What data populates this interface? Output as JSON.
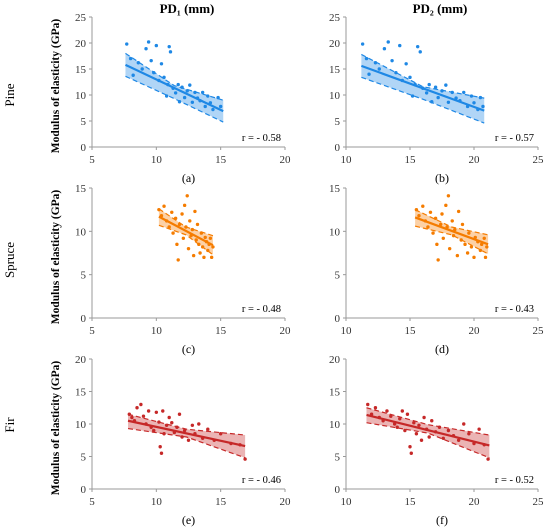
{
  "column_headers": [
    "PD₁ (mm)",
    "PD₂ (mm)"
  ],
  "row_labels": [
    "Pine",
    "Spruce",
    "Fir"
  ],
  "ylabel": "Modulus of elasticity (GPa)",
  "colors": {
    "pine": "#1e88e5",
    "spruce": "#f57c00",
    "fir": "#c62828"
  },
  "chart_data": [
    {
      "type": "scatter",
      "panel": "(a)",
      "species": "Pine",
      "color": "#1e88e5",
      "xlim": [
        5,
        20
      ],
      "ylim": [
        0,
        25
      ],
      "xticks": [
        5,
        10,
        15,
        20
      ],
      "yticks": [
        0,
        5,
        10,
        15,
        20,
        25
      ],
      "ylabel": "Modulus of elasticity (GPa)",
      "annotation": "r = - 0.58",
      "fit": {
        "x": [
          7.6,
          15.2
        ],
        "y": [
          15.8,
          6.9
        ]
      },
      "band": {
        "x": [
          7.6,
          11.4,
          15.2
        ],
        "upper": [
          18.0,
          11.8,
          9.0
        ],
        "lower": [
          13.6,
          9.3,
          4.8
        ]
      },
      "points": [
        [
          7.7,
          19.8
        ],
        [
          8.0,
          17.0
        ],
        [
          8.2,
          13.8
        ],
        [
          8.6,
          16.2
        ],
        [
          8.9,
          15.0
        ],
        [
          9.2,
          18.9
        ],
        [
          9.4,
          20.2
        ],
        [
          9.6,
          16.6
        ],
        [
          9.8,
          14.3
        ],
        [
          10.0,
          19.5
        ],
        [
          10.2,
          12.8
        ],
        [
          10.4,
          16.0
        ],
        [
          10.6,
          13.4
        ],
        [
          10.8,
          9.8
        ],
        [
          10.9,
          12.0
        ],
        [
          11.0,
          19.3
        ],
        [
          11.1,
          18.3
        ],
        [
          11.3,
          11.3
        ],
        [
          11.5,
          10.4
        ],
        [
          11.7,
          12.0
        ],
        [
          11.8,
          8.7
        ],
        [
          12.0,
          11.5
        ],
        [
          12.2,
          9.5
        ],
        [
          12.4,
          10.8
        ],
        [
          12.6,
          11.9
        ],
        [
          12.8,
          8.6
        ],
        [
          13.0,
          10.5
        ],
        [
          13.2,
          9.4
        ],
        [
          13.4,
          8.9
        ],
        [
          13.6,
          10.5
        ],
        [
          13.8,
          7.8
        ],
        [
          14.0,
          9.8
        ],
        [
          14.2,
          8.5
        ],
        [
          14.4,
          7.2
        ],
        [
          14.8,
          9.5
        ],
        [
          15.0,
          7.8
        ]
      ]
    },
    {
      "type": "scatter",
      "panel": "(b)",
      "species": "Pine",
      "color": "#1e88e5",
      "xlim": [
        10,
        25
      ],
      "ylim": [
        0,
        25
      ],
      "xticks": [
        10,
        15,
        20,
        25
      ],
      "yticks": [
        0,
        5,
        10,
        15,
        20,
        25
      ],
      "ylabel": "",
      "annotation": "r = - 0.57",
      "fit": {
        "x": [
          11.2,
          20.8
        ],
        "y": [
          15.6,
          7.0
        ]
      },
      "band": {
        "x": [
          11.2,
          16.0,
          20.8
        ],
        "upper": [
          17.8,
          11.6,
          9.4
        ],
        "lower": [
          13.4,
          9.2,
          4.6
        ]
      },
      "points": [
        [
          11.3,
          19.8
        ],
        [
          11.6,
          17.0
        ],
        [
          11.8,
          14.0
        ],
        [
          12.3,
          16.2
        ],
        [
          12.6,
          15.0
        ],
        [
          13.0,
          18.9
        ],
        [
          13.3,
          20.2
        ],
        [
          13.6,
          16.6
        ],
        [
          13.9,
          14.3
        ],
        [
          14.2,
          19.5
        ],
        [
          14.4,
          12.8
        ],
        [
          14.7,
          16.0
        ],
        [
          15.0,
          13.4
        ],
        [
          15.2,
          9.8
        ],
        [
          15.4,
          12.0
        ],
        [
          15.6,
          19.3
        ],
        [
          15.8,
          18.3
        ],
        [
          16.0,
          11.3
        ],
        [
          16.3,
          10.4
        ],
        [
          16.5,
          12.0
        ],
        [
          16.7,
          8.7
        ],
        [
          17.0,
          11.5
        ],
        [
          17.2,
          9.5
        ],
        [
          17.5,
          10.8
        ],
        [
          17.8,
          11.9
        ],
        [
          18.0,
          8.6
        ],
        [
          18.3,
          10.5
        ],
        [
          18.6,
          9.4
        ],
        [
          18.9,
          8.9
        ],
        [
          19.2,
          10.5
        ],
        [
          19.5,
          7.8
        ],
        [
          19.8,
          9.8
        ],
        [
          20.0,
          8.5
        ],
        [
          20.3,
          7.2
        ],
        [
          20.5,
          9.5
        ],
        [
          20.7,
          7.8
        ]
      ]
    },
    {
      "type": "scatter",
      "panel": "(c)",
      "species": "Spruce",
      "color": "#f57c00",
      "xlim": [
        5,
        20
      ],
      "ylim": [
        0,
        15
      ],
      "xticks": [
        5,
        10,
        15,
        20
      ],
      "yticks": [
        0,
        5,
        10,
        15
      ],
      "ylabel": "Modulus of elasticity (GPa)",
      "annotation": "r = - 0.48",
      "fit": {
        "x": [
          10.2,
          14.4
        ],
        "y": [
          11.7,
          8.4
        ]
      },
      "band": {
        "x": [
          10.2,
          12.3,
          14.4
        ],
        "upper": [
          12.6,
          10.5,
          9.5
        ],
        "lower": [
          10.7,
          9.6,
          7.3
        ]
      },
      "points": [
        [
          10.2,
          12.5
        ],
        [
          10.4,
          11.8
        ],
        [
          10.6,
          12.9
        ],
        [
          10.8,
          11.2
        ],
        [
          11.0,
          10.5
        ],
        [
          11.2,
          12.2
        ],
        [
          11.3,
          9.8
        ],
        [
          11.5,
          11.5
        ],
        [
          11.6,
          8.5
        ],
        [
          11.7,
          6.7
        ],
        [
          11.8,
          10.8
        ],
        [
          12.0,
          12.0
        ],
        [
          12.1,
          9.2
        ],
        [
          12.2,
          13.0
        ],
        [
          12.3,
          10.5
        ],
        [
          12.4,
          14.1
        ],
        [
          12.5,
          8.0
        ],
        [
          12.6,
          11.2
        ],
        [
          12.7,
          9.5
        ],
        [
          12.8,
          10.2
        ],
        [
          12.9,
          7.2
        ],
        [
          13.0,
          12.3
        ],
        [
          13.1,
          9.0
        ],
        [
          13.2,
          10.8
        ],
        [
          13.3,
          8.5
        ],
        [
          13.4,
          7.5
        ],
        [
          13.5,
          9.8
        ],
        [
          13.6,
          8.2
        ],
        [
          13.7,
          7.0
        ],
        [
          13.8,
          9.3
        ],
        [
          13.9,
          8.8
        ],
        [
          14.0,
          7.8
        ],
        [
          14.1,
          8.5
        ],
        [
          14.2,
          9.2
        ],
        [
          14.3,
          7.0
        ],
        [
          14.4,
          8.2
        ]
      ]
    },
    {
      "type": "scatter",
      "panel": "(d)",
      "species": "Spruce",
      "color": "#f57c00",
      "xlim": [
        10,
        25
      ],
      "ylim": [
        0,
        15
      ],
      "xticks": [
        10,
        15,
        20,
        25
      ],
      "yticks": [
        0,
        5,
        10,
        15
      ],
      "ylabel": "",
      "annotation": "r = - 0.43",
      "fit": {
        "x": [
          15.4,
          21.1
        ],
        "y": [
          11.6,
          8.5
        ]
      },
      "band": {
        "x": [
          15.4,
          18.25,
          21.1
        ],
        "upper": [
          12.5,
          10.5,
          9.6
        ],
        "lower": [
          10.6,
          9.6,
          7.4
        ]
      },
      "points": [
        [
          15.5,
          12.5
        ],
        [
          15.7,
          11.8
        ],
        [
          16.0,
          12.9
        ],
        [
          16.2,
          11.2
        ],
        [
          16.4,
          10.5
        ],
        [
          16.6,
          12.2
        ],
        [
          16.8,
          9.8
        ],
        [
          17.0,
          11.5
        ],
        [
          17.1,
          8.5
        ],
        [
          17.2,
          6.7
        ],
        [
          17.4,
          10.8
        ],
        [
          17.5,
          12.0
        ],
        [
          17.6,
          9.2
        ],
        [
          17.8,
          13.0
        ],
        [
          17.9,
          10.5
        ],
        [
          18.0,
          14.1
        ],
        [
          18.1,
          8.0
        ],
        [
          18.3,
          11.2
        ],
        [
          18.4,
          9.5
        ],
        [
          18.5,
          10.2
        ],
        [
          18.7,
          7.2
        ],
        [
          18.8,
          12.3
        ],
        [
          19.0,
          9.0
        ],
        [
          19.1,
          10.8
        ],
        [
          19.3,
          8.5
        ],
        [
          19.5,
          7.5
        ],
        [
          19.6,
          9.8
        ],
        [
          19.8,
          8.2
        ],
        [
          20.0,
          7.0
        ],
        [
          20.1,
          9.3
        ],
        [
          20.3,
          8.8
        ],
        [
          20.5,
          7.8
        ],
        [
          20.6,
          8.5
        ],
        [
          20.8,
          9.2
        ],
        [
          20.9,
          7.0
        ],
        [
          21.0,
          8.2
        ]
      ]
    },
    {
      "type": "scatter",
      "panel": "(e)",
      "species": "Fir",
      "color": "#c62828",
      "xlim": [
        5,
        20
      ],
      "ylim": [
        0,
        20
      ],
      "xticks": [
        5,
        10,
        15,
        20
      ],
      "yticks": [
        0,
        5,
        10,
        15,
        20
      ],
      "ylabel": "Modulus of elasticity (GPa)",
      "annotation": "r = - 0.46",
      "fit": {
        "x": [
          7.8,
          16.9
        ],
        "y": [
          10.5,
          6.6
        ]
      },
      "band": {
        "x": [
          7.8,
          12.35,
          16.9
        ],
        "upper": [
          11.5,
          9.2,
          8.3
        ],
        "lower": [
          9.3,
          8.0,
          4.8
        ]
      },
      "points": [
        [
          7.9,
          11.5
        ],
        [
          8.1,
          11.0
        ],
        [
          8.3,
          10.5
        ],
        [
          8.5,
          12.5
        ],
        [
          8.8,
          13.0
        ],
        [
          9.0,
          11.2
        ],
        [
          9.2,
          10.0
        ],
        [
          9.4,
          12.0
        ],
        [
          9.6,
          9.5
        ],
        [
          9.8,
          9.0
        ],
        [
          10.0,
          11.8
        ],
        [
          10.2,
          10.3
        ],
        [
          10.3,
          6.5
        ],
        [
          10.4,
          5.5
        ],
        [
          10.5,
          12.0
        ],
        [
          10.6,
          8.5
        ],
        [
          10.8,
          9.8
        ],
        [
          11.0,
          11.0
        ],
        [
          11.2,
          10.2
        ],
        [
          11.4,
          8.7
        ],
        [
          11.6,
          9.5
        ],
        [
          11.8,
          11.5
        ],
        [
          12.0,
          8.0
        ],
        [
          12.2,
          9.0
        ],
        [
          12.5,
          7.5
        ],
        [
          12.8,
          9.8
        ],
        [
          13.0,
          8.5
        ],
        [
          13.3,
          10.0
        ],
        [
          13.6,
          7.8
        ],
        [
          14.0,
          9.2
        ],
        [
          14.5,
          7.5
        ],
        [
          15.0,
          8.5
        ],
        [
          15.8,
          7.0
        ],
        [
          16.5,
          6.8
        ],
        [
          16.9,
          4.6
        ]
      ]
    },
    {
      "type": "scatter",
      "panel": "(f)",
      "species": "Fir",
      "color": "#c62828",
      "xlim": [
        10,
        25
      ],
      "ylim": [
        0,
        20
      ],
      "xticks": [
        10,
        15,
        20,
        25
      ],
      "yticks": [
        0,
        5,
        10,
        15,
        20
      ],
      "ylabel": "",
      "annotation": "r = - 0.52",
      "fit": {
        "x": [
          11.6,
          21.2
        ],
        "y": [
          11.4,
          6.7
        ]
      },
      "band": {
        "x": [
          11.6,
          16.4,
          21.2
        ],
        "upper": [
          12.5,
          9.9,
          8.3
        ],
        "lower": [
          10.2,
          8.6,
          4.8
        ]
      },
      "points": [
        [
          11.7,
          13.0
        ],
        [
          12.0,
          11.5
        ],
        [
          12.3,
          12.5
        ],
        [
          12.6,
          11.0
        ],
        [
          12.9,
          10.5
        ],
        [
          13.2,
          12.0
        ],
        [
          13.5,
          11.2
        ],
        [
          13.8,
          10.0
        ],
        [
          14.0,
          9.5
        ],
        [
          14.2,
          10.8
        ],
        [
          14.4,
          12.0
        ],
        [
          14.6,
          9.0
        ],
        [
          14.8,
          11.5
        ],
        [
          15.0,
          6.5
        ],
        [
          15.1,
          5.5
        ],
        [
          15.3,
          10.2
        ],
        [
          15.5,
          8.5
        ],
        [
          15.7,
          9.8
        ],
        [
          15.9,
          7.5
        ],
        [
          16.1,
          11.0
        ],
        [
          16.3,
          9.2
        ],
        [
          16.5,
          8.0
        ],
        [
          16.7,
          10.5
        ],
        [
          17.0,
          8.8
        ],
        [
          17.3,
          9.5
        ],
        [
          17.6,
          7.8
        ],
        [
          18.0,
          9.0
        ],
        [
          18.4,
          8.2
        ],
        [
          18.8,
          7.5
        ],
        [
          19.2,
          10.0
        ],
        [
          19.6,
          8.5
        ],
        [
          20.0,
          7.0
        ],
        [
          20.4,
          9.2
        ],
        [
          20.8,
          6.8
        ],
        [
          21.1,
          4.6
        ]
      ]
    }
  ],
  "panel_labels": [
    "(a)",
    "(b)",
    "(c)",
    "(d)",
    "(e)",
    "(f)"
  ]
}
